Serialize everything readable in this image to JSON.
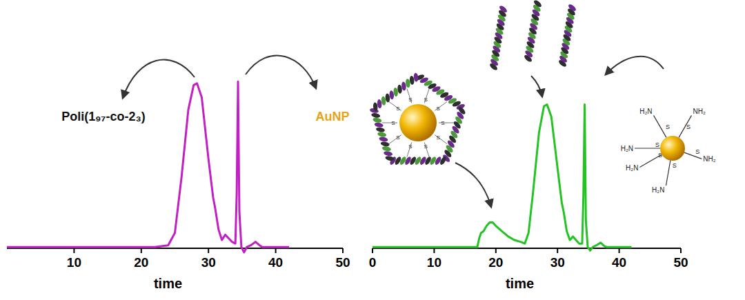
{
  "chart_data": [
    {
      "type": "line",
      "x_label": "time",
      "grid": false,
      "tick_labels": "x",
      "xlim": [
        0,
        50
      ],
      "xticks": [
        10,
        20,
        30,
        40,
        50
      ],
      "ylim": [
        -5,
        100
      ],
      "annotations": [
        {
          "text": "Poli(1₉₇-co-2₃)"
        },
        {
          "text": "AuNP"
        }
      ],
      "x": [
        0,
        22,
        24,
        25,
        26,
        27,
        27.8,
        28.3,
        29,
        30,
        30.7,
        31,
        31.5,
        32,
        32.5,
        33,
        33.5,
        34,
        34.2,
        34.4,
        34.6,
        34.9,
        35.3,
        35.7,
        36.3,
        37,
        37.6,
        38,
        42
      ],
      "series": [
        {
          "color": "#c21fc4",
          "values": [
            0,
            0,
            1,
            8,
            40,
            78,
            92,
            93,
            85,
            50,
            28,
            22,
            10,
            4,
            7,
            5,
            3,
            2,
            30,
            94,
            20,
            0,
            -3,
            0,
            1,
            3,
            1,
            0,
            0
          ]
        }
      ]
    },
    {
      "type": "line",
      "x_label": "time",
      "grid": false,
      "tick_labels": "x",
      "xlim": [
        0,
        50
      ],
      "xticks": [
        0,
        10,
        20,
        30,
        40,
        50
      ],
      "ylim": [
        -5,
        100
      ],
      "annotations": [
        {
          "text": "H₂N"
        },
        {
          "text": "S"
        },
        {
          "text": "NH₂"
        }
      ],
      "x": [
        0,
        17,
        17.3,
        17.6,
        18,
        18.5,
        19,
        19.5,
        20,
        21,
        22,
        23,
        24,
        24.7,
        25.3,
        26,
        27,
        27.8,
        28.3,
        29,
        30,
        30.7,
        31,
        31.5,
        32,
        32.5,
        33,
        33.5,
        34,
        34.2,
        34.4,
        34.6,
        34.9,
        35.3,
        35.7,
        36.3,
        37,
        37.6,
        38,
        42
      ],
      "series": [
        {
          "color": "#22c322",
          "values": [
            0,
            0,
            5,
            8,
            9,
            12,
            14,
            14,
            12,
            9,
            6,
            4,
            3,
            2,
            8,
            30,
            65,
            80,
            81,
            74,
            45,
            25,
            20,
            9,
            4,
            6,
            4,
            2,
            2,
            30,
            81,
            15,
            0,
            -2,
            0,
            1,
            2.5,
            0.5,
            0,
            0
          ]
        }
      ]
    }
  ]
}
